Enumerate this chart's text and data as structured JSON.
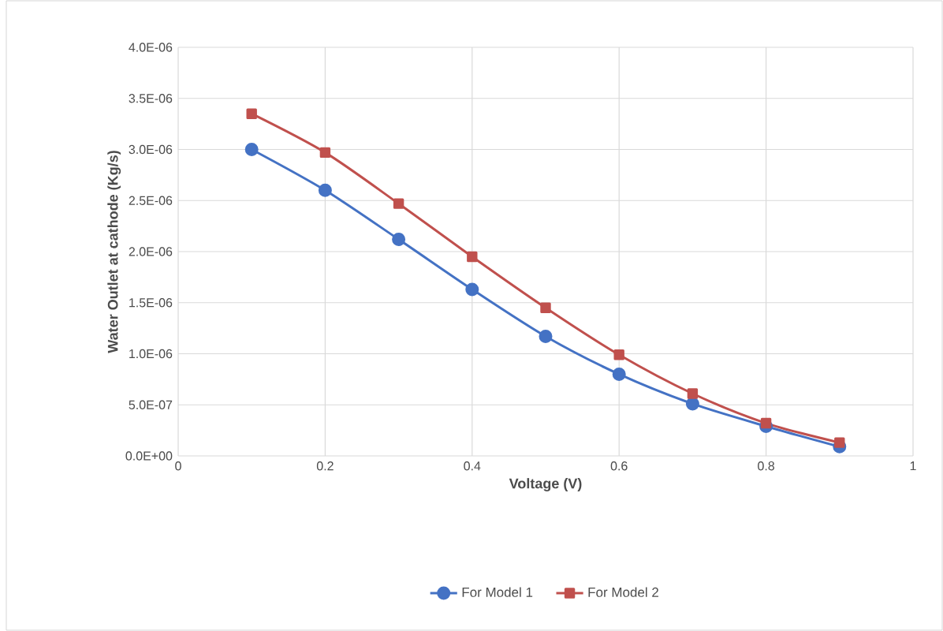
{
  "chart_data": {
    "type": "line",
    "xlabel": "Voltage (V)",
    "ylabel": "Water Outlet at cathode (Kg/s)",
    "x": [
      0.1,
      0.2,
      0.3,
      0.4,
      0.5,
      0.6,
      0.7,
      0.8,
      0.9
    ],
    "series": [
      {
        "name": "For Model 1",
        "color": "#4472c4",
        "marker": "circle",
        "values": [
          3e-06,
          2.6e-06,
          2.12e-06,
          1.63e-06,
          1.17e-06,
          8e-07,
          5.1e-07,
          2.9e-07,
          9e-08
        ]
      },
      {
        "name": "For Model 2",
        "color": "#c0504d",
        "marker": "square",
        "values": [
          3.35e-06,
          2.97e-06,
          2.47e-06,
          1.95e-06,
          1.45e-06,
          9.9e-07,
          6.1e-07,
          3.2e-07,
          1.3e-07
        ]
      }
    ],
    "xlim": [
      0,
      1
    ],
    "ylim": [
      0,
      4e-06
    ],
    "xticks": [
      0,
      0.2,
      0.4,
      0.6,
      0.8,
      1
    ],
    "yticks": [
      {
        "value": 0,
        "label": "0.0E+00"
      },
      {
        "value": 5e-07,
        "label": "5.0E-07"
      },
      {
        "value": 1e-06,
        "label": "1.0E-06"
      },
      {
        "value": 1.5e-06,
        "label": "1.5E-06"
      },
      {
        "value": 2e-06,
        "label": "2.0E-06"
      },
      {
        "value": 2.5e-06,
        "label": "2.5E-06"
      },
      {
        "value": 3e-06,
        "label": "3.0E-06"
      },
      {
        "value": 3.5e-06,
        "label": "3.5E-06"
      },
      {
        "value": 4e-06,
        "label": "4.0E-06"
      }
    ],
    "grid": true,
    "legend": "bottom",
    "line_style": "solid"
  }
}
